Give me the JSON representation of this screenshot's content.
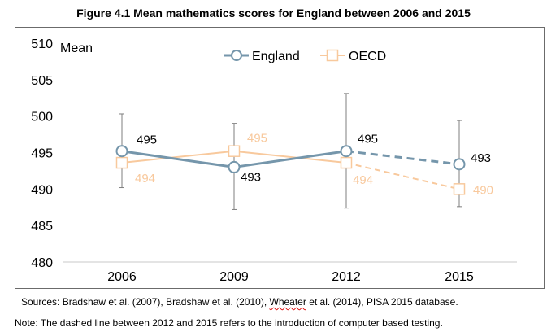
{
  "title": "Figure 4.1 Mean mathematics scores for England between 2006 and 2015",
  "sources_before": "Sources: Bradshaw et al. (2007), Bradshaw et al. (2010), ",
  "sources_wheater": "Wheater",
  "sources_after": " et al. (2014), PISA 2015 database.",
  "note": "Note: The dashed line between 2012 and 2015 refers to the introduction of computer based testing.",
  "chart_data": {
    "type": "line",
    "title": "Figure 4.1 Mean mathematics scores for England between 2006 and 2015",
    "ylabel": "Mean",
    "xlabel": "",
    "categories": [
      "2006",
      "2009",
      "2012",
      "2015"
    ],
    "ylim": [
      480,
      510
    ],
    "yticks": [
      480,
      485,
      490,
      495,
      500,
      505,
      510
    ],
    "grid": false,
    "legend": "top-center",
    "series": [
      {
        "name": "England",
        "color": "#7596ab",
        "marker": "circle",
        "values": [
          495.2,
          493.0,
          495.2,
          493.4
        ],
        "labels": [
          "495",
          "493",
          "495",
          "493"
        ],
        "error_low": [
          490.2,
          487.2,
          487.4,
          487.6
        ],
        "error_high": [
          500.3,
          499.0,
          503.1,
          499.4
        ],
        "dashed_from_index": 2
      },
      {
        "name": "OECD",
        "color": "#f8c99d",
        "marker": "square",
        "values": [
          493.6,
          495.2,
          493.6,
          490.0
        ],
        "labels": [
          "494",
          "495",
          "494",
          "490"
        ],
        "dashed_from_index": 2
      }
    ]
  }
}
